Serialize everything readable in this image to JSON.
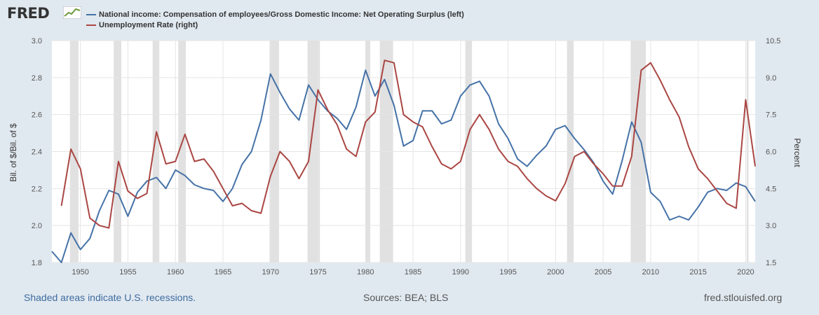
{
  "header": {
    "logo": "FRED"
  },
  "footer": {
    "recessions_note": "Shaded areas indicate U.S. recessions.",
    "sources": "Sources: BEA; BLS",
    "site": "fred.stlouisfed.org"
  },
  "chart_data": {
    "type": "line",
    "title": "",
    "ylabel_left": "Bil. of $/Bil. of $",
    "ylabel_right": "Percent",
    "xlim": [
      1947,
      2021
    ],
    "ylim_left": [
      1.8,
      3.0
    ],
    "ylim_right": [
      1.5,
      10.5
    ],
    "x_ticks": [
      "1950",
      "1955",
      "1960",
      "1965",
      "1970",
      "1975",
      "1980",
      "1985",
      "1990",
      "1995",
      "2000",
      "2005",
      "2010",
      "2015",
      "2020"
    ],
    "y_ticks_left": [
      "1.8",
      "2.0",
      "2.2",
      "2.4",
      "2.6",
      "2.8",
      "3.0"
    ],
    "y_ticks_right": [
      "1.5",
      "3.0",
      "4.5",
      "6.0",
      "7.5",
      "9.0",
      "10.5"
    ],
    "grid": true,
    "legend_position": "top-left",
    "recessions": [
      [
        1948.9,
        1949.8
      ],
      [
        1953.5,
        1954.3
      ],
      [
        1957.6,
        1958.3
      ],
      [
        1960.3,
        1961.1
      ],
      [
        1969.9,
        1970.9
      ],
      [
        1973.9,
        1975.2
      ],
      [
        1980.0,
        1980.5
      ],
      [
        1981.5,
        1982.9
      ],
      [
        1990.5,
        1991.2
      ],
      [
        2001.2,
        2001.9
      ],
      [
        2007.9,
        2009.5
      ],
      [
        2020.1,
        2020.3
      ]
    ],
    "colors": {
      "series1": "#4572a7",
      "series2": "#aa4643",
      "recession_fill": "#e1e1e1",
      "grid": "#e5e5e5"
    },
    "series": [
      {
        "name": "National income: Compensation of employees/Gross Domestic Income: Net Operating Surplus (left)",
        "axis": "left",
        "x": [
          1947,
          1948,
          1949,
          1950,
          1951,
          1952,
          1953,
          1954,
          1955,
          1956,
          1957,
          1958,
          1959,
          1960,
          1961,
          1962,
          1963,
          1964,
          1965,
          1966,
          1967,
          1968,
          1969,
          1970,
          1971,
          1972,
          1973,
          1974,
          1975,
          1976,
          1977,
          1978,
          1979,
          1980,
          1981,
          1982,
          1983,
          1984,
          1985,
          1986,
          1987,
          1988,
          1989,
          1990,
          1991,
          1992,
          1993,
          1994,
          1995,
          1996,
          1997,
          1998,
          1999,
          2000,
          2001,
          2002,
          2003,
          2004,
          2005,
          2006,
          2007,
          2008,
          2009,
          2010,
          2011,
          2012,
          2013,
          2014,
          2015,
          2016,
          2017,
          2018,
          2019,
          2020,
          2021
        ],
        "values": [
          1.86,
          1.8,
          1.96,
          1.87,
          1.93,
          2.08,
          2.19,
          2.17,
          2.05,
          2.18,
          2.24,
          2.26,
          2.2,
          2.3,
          2.27,
          2.22,
          2.2,
          2.19,
          2.13,
          2.2,
          2.33,
          2.4,
          2.57,
          2.82,
          2.72,
          2.63,
          2.57,
          2.76,
          2.68,
          2.62,
          2.58,
          2.52,
          2.64,
          2.84,
          2.7,
          2.79,
          2.65,
          2.43,
          2.46,
          2.62,
          2.62,
          2.55,
          2.57,
          2.7,
          2.76,
          2.78,
          2.7,
          2.55,
          2.47,
          2.36,
          2.32,
          2.38,
          2.43,
          2.52,
          2.54,
          2.47,
          2.41,
          2.34,
          2.24,
          2.17,
          2.35,
          2.56,
          2.45,
          2.18,
          2.13,
          2.03,
          2.05,
          2.03,
          2.1,
          2.18,
          2.2,
          2.19,
          2.23,
          2.21,
          2.13
        ]
      },
      {
        "name": "Unemployment Rate (right)",
        "axis": "right",
        "x": [
          1948,
          1949,
          1950,
          1951,
          1952,
          1953,
          1954,
          1955,
          1956,
          1957,
          1958,
          1959,
          1960,
          1961,
          1962,
          1963,
          1964,
          1965,
          1966,
          1967,
          1968,
          1969,
          1970,
          1971,
          1972,
          1973,
          1974,
          1975,
          1976,
          1977,
          1978,
          1979,
          1980,
          1981,
          1982,
          1983,
          1984,
          1985,
          1986,
          1987,
          1988,
          1989,
          1990,
          1991,
          1992,
          1993,
          1994,
          1995,
          1996,
          1997,
          1998,
          1999,
          2000,
          2001,
          2002,
          2003,
          2004,
          2005,
          2006,
          2007,
          2008,
          2009,
          2010,
          2011,
          2012,
          2013,
          2014,
          2015,
          2016,
          2017,
          2018,
          2019,
          2020,
          2021
        ],
        "values": [
          3.8,
          6.1,
          5.3,
          3.3,
          3.0,
          2.9,
          5.6,
          4.4,
          4.1,
          4.3,
          6.8,
          5.5,
          5.6,
          6.7,
          5.6,
          5.7,
          5.2,
          4.5,
          3.8,
          3.9,
          3.6,
          3.5,
          5.0,
          6.0,
          5.6,
          4.9,
          5.6,
          8.5,
          7.7,
          7.1,
          6.1,
          5.8,
          7.2,
          7.6,
          9.7,
          9.6,
          7.5,
          7.2,
          7.0,
          6.2,
          5.5,
          5.3,
          5.6,
          6.9,
          7.5,
          6.9,
          6.1,
          5.6,
          5.4,
          4.9,
          4.5,
          4.2,
          4.0,
          4.7,
          5.8,
          6.0,
          5.5,
          5.1,
          4.6,
          4.6,
          5.8,
          9.3,
          9.6,
          8.9,
          8.1,
          7.4,
          6.2,
          5.3,
          4.9,
          4.4,
          3.9,
          3.7,
          8.1,
          5.4
        ]
      }
    ]
  }
}
